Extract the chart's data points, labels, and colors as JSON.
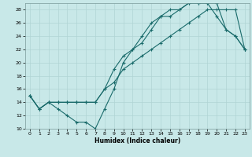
{
  "title": "",
  "xlabel": "Humidex (Indice chaleur)",
  "background_color": "#c8e8e8",
  "grid_color": "#b0d4d4",
  "line_color": "#1a6b6b",
  "xlim": [
    -0.5,
    23.5
  ],
  "ylim": [
    10,
    29
  ],
  "yticks": [
    10,
    12,
    14,
    16,
    18,
    20,
    22,
    24,
    26,
    28
  ],
  "xticks": [
    0,
    1,
    2,
    3,
    4,
    5,
    6,
    7,
    8,
    9,
    10,
    11,
    12,
    13,
    14,
    15,
    16,
    17,
    18,
    19,
    20,
    21,
    22,
    23
  ],
  "line1_x": [
    0,
    1,
    2,
    3,
    4,
    5,
    6,
    7,
    8,
    9,
    10,
    11,
    12,
    13,
    14,
    15,
    16,
    17,
    18,
    19,
    20,
    21,
    22,
    23
  ],
  "line1_y": [
    15,
    13,
    14,
    13,
    12,
    11,
    11,
    10,
    13,
    16,
    20,
    22,
    23,
    25,
    27,
    27,
    28,
    29,
    29,
    29,
    29,
    25,
    24,
    22
  ],
  "line2_x": [
    0,
    1,
    2,
    3,
    4,
    5,
    6,
    7,
    8,
    9,
    10,
    11,
    12,
    13,
    14,
    15,
    16,
    17,
    18,
    19,
    20,
    21,
    22,
    23
  ],
  "line2_y": [
    15,
    13,
    14,
    14,
    14,
    14,
    14,
    14,
    16,
    19,
    21,
    22,
    24,
    26,
    27,
    28,
    28,
    29,
    29,
    29,
    27,
    25,
    24,
    22
  ],
  "line3_x": [
    0,
    1,
    2,
    3,
    4,
    5,
    6,
    7,
    8,
    9,
    10,
    11,
    12,
    13,
    14,
    15,
    16,
    17,
    18,
    19,
    20,
    21,
    22,
    23
  ],
  "line3_y": [
    15,
    13,
    14,
    14,
    14,
    14,
    14,
    14,
    16,
    17,
    19,
    20,
    21,
    22,
    23,
    24,
    25,
    26,
    27,
    28,
    28,
    28,
    28,
    22
  ]
}
